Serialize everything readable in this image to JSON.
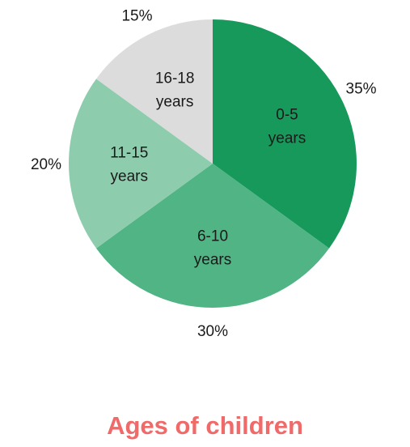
{
  "chart_data": {
    "type": "pie",
    "title": "Ages of children",
    "slices": [
      {
        "label": "0-5 years",
        "label_lines": [
          "0-5",
          "years"
        ],
        "value": 35,
        "pct_label": "35%",
        "color": "#16995a"
      },
      {
        "label": "6-10 years",
        "label_lines": [
          "6-10",
          "years"
        ],
        "value": 30,
        "pct_label": "30%",
        "color": "#50b485"
      },
      {
        "label": "11-15 years",
        "label_lines": [
          "11-15",
          "years"
        ],
        "value": 20,
        "pct_label": "20%",
        "color": "#8dcdad"
      },
      {
        "label": "16-18 years",
        "label_lines": [
          "16-18",
          "years"
        ],
        "value": 15,
        "pct_label": "15%",
        "color": "#dcdcdc"
      }
    ],
    "start_angle": "12 o'clock",
    "direction": "clockwise",
    "legend": "none"
  }
}
